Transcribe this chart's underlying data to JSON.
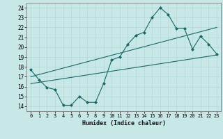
{
  "xlabel": "Humidex (Indice chaleur)",
  "ylabel": "",
  "background_color": "#c8e8e8",
  "grid_color": "#b0d8d8",
  "line_color": "#1a6666",
  "xlim": [
    -0.5,
    23.5
  ],
  "ylim": [
    13.5,
    24.5
  ],
  "xticks": [
    0,
    1,
    2,
    3,
    4,
    5,
    6,
    7,
    8,
    9,
    10,
    11,
    12,
    13,
    14,
    15,
    16,
    17,
    18,
    19,
    20,
    21,
    22,
    23
  ],
  "yticks": [
    14,
    15,
    16,
    17,
    18,
    19,
    20,
    21,
    22,
    23,
    24
  ],
  "line1_x": [
    0,
    1,
    2,
    3,
    4,
    5,
    6,
    7,
    8,
    9,
    10,
    11,
    12,
    13,
    14,
    15,
    16,
    17,
    18,
    19,
    20,
    21,
    22,
    23
  ],
  "line1_y": [
    17.7,
    16.7,
    15.9,
    15.7,
    14.1,
    14.1,
    15.0,
    14.4,
    14.4,
    16.3,
    18.7,
    19.0,
    20.3,
    21.2,
    21.5,
    23.0,
    24.0,
    23.3,
    21.9,
    21.9,
    19.8,
    21.1,
    20.3,
    19.3
  ],
  "line2_x": [
    0,
    23
  ],
  "line2_y": [
    17.0,
    22.0
  ],
  "line3_x": [
    0,
    23
  ],
  "line3_y": [
    16.3,
    19.2
  ]
}
